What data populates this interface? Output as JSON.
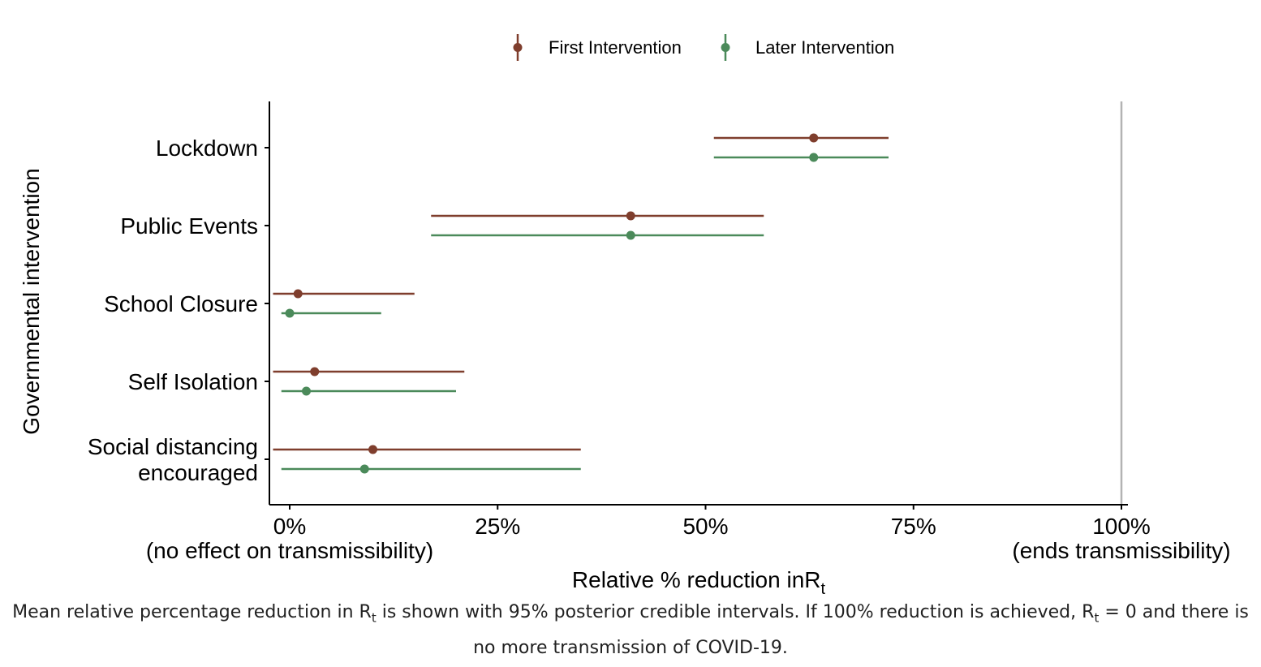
{
  "chart_data": {
    "type": "interval",
    "categories": [
      "Lockdown",
      "Public Events",
      "School Closure",
      "Self Isolation",
      "Social distancing encouraged"
    ],
    "series": [
      {
        "name": "First Intervention",
        "color": "#7f3e2d",
        "mean": [
          63,
          41,
          1,
          3,
          10
        ],
        "lower": [
          51,
          17,
          -2,
          -2,
          -2
        ],
        "upper": [
          72,
          57,
          15,
          21,
          35
        ]
      },
      {
        "name": "Later Intervention",
        "color": "#4b8a5a",
        "mean": [
          63,
          41,
          0,
          2,
          9
        ],
        "lower": [
          51,
          17,
          -1,
          -1,
          -1
        ],
        "upper": [
          72,
          57,
          11,
          20,
          35
        ]
      }
    ],
    "x_ticks": [
      0,
      25,
      50,
      75,
      100
    ],
    "x_tick_labels": [
      "0%",
      "25%",
      "50%",
      "75%",
      "100%"
    ],
    "x_tick_sublabels": [
      "(no effect on transmissibility)",
      "",
      "",
      "",
      "(ends transmissibility)"
    ],
    "xlim": [
      -2.5,
      100.5
    ],
    "reference_line": 100,
    "xlabel": "Relative % reduction in",
    "xlabel_symbol": "R",
    "xlabel_subscript": "t",
    "ylabel": "Governmental intervention",
    "legend_position": "top",
    "grid": false
  },
  "caption": {
    "part1": "Mean relative percentage reduction in ",
    "sym1": "R",
    "sub1": "t",
    "part2": " is shown with 95% posterior credible intervals. If 100% reduction is achieved, ",
    "sym2": "R",
    "sub2": "t",
    "part3": " = 0 and there is no more transmission of COVID-19."
  }
}
